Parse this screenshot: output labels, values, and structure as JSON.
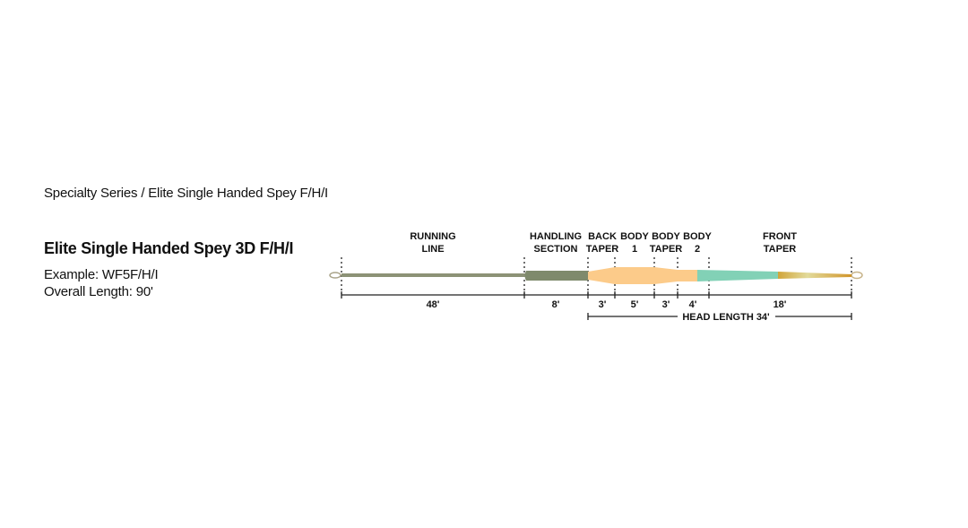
{
  "breadcrumb": "Specialty Series / Elite Single Handed Spey F/H/I",
  "product": {
    "title": "Elite Single Handed Spey 3D F/H/I",
    "example": "Example: WF5F/H/I",
    "overall_length": "Overall Length: 90'"
  },
  "diagram": {
    "sections": [
      {
        "label_line1": "RUNNING",
        "label_line2": "LINE",
        "length": "48'"
      },
      {
        "label_line1": "HANDLING",
        "label_line2": "SECTION",
        "length": "8'"
      },
      {
        "label_line1": "BACK",
        "label_line2": "TAPER",
        "length": "3'"
      },
      {
        "label_line1": "BODY",
        "label_line2": "1",
        "length": "5'"
      },
      {
        "label_line1": "BODY",
        "label_line2": "TAPER",
        "length": "3'"
      },
      {
        "label_line1": "BODY",
        "label_line2": "2",
        "length": "4'"
      },
      {
        "label_line1": "FRONT",
        "label_line2": "TAPER",
        "length": "18'"
      }
    ],
    "head_length": "HEAD LENGTH 34'",
    "colors": {
      "running_line": "#8c9276",
      "handling": "#7f8a6c",
      "body": "#fccb8a",
      "front_taper": "#82d1b6",
      "tip": "#d1a53a"
    }
  }
}
